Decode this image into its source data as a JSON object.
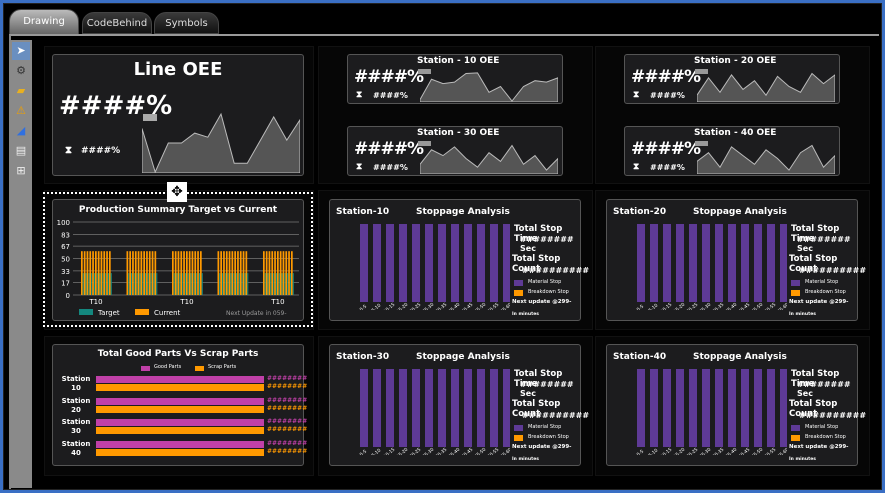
{
  "tabs": [
    "Drawing",
    "CodeBehind",
    "Symbols"
  ],
  "tools": [
    "pointer-icon",
    "connector-icon",
    "folder-icon",
    "warning-icon",
    "chart-icon",
    "table-icon",
    "grid-icon"
  ],
  "line_oee": {
    "title": "Line OEE",
    "value": "####%",
    "sub": "####%",
    "spark": [
      0.75,
      0.0,
      0.5,
      0.5,
      0.67,
      0.6,
      1.0,
      0.15,
      0.15,
      0.55,
      0.95,
      0.55,
      0.9
    ]
  },
  "stations_oee": [
    {
      "title": "Station - 10 OEE",
      "value": "####%",
      "sub": "####%",
      "spark": [
        0.05,
        0.75,
        0.6,
        0.65,
        0.95,
        0.97,
        0.3,
        0.5,
        0.0,
        0.5,
        0.7,
        0.65,
        0.8
      ]
    },
    {
      "title": "Station - 20 OEE",
      "value": "####%",
      "sub": "####%",
      "spark": [
        0.2,
        0.8,
        0.3,
        0.9,
        0.4,
        0.7,
        0.2,
        0.85,
        0.5,
        0.3,
        0.95,
        0.6,
        0.9
      ]
    },
    {
      "title": "Station - 30 OEE",
      "value": "####%",
      "sub": "####%",
      "spark": [
        0.3,
        0.8,
        0.6,
        0.9,
        0.5,
        0.2,
        0.7,
        0.4,
        0.95,
        0.3,
        0.6,
        0.1,
        0.5
      ]
    },
    {
      "title": "Station - 40 OEE",
      "value": "####%",
      "sub": "####%",
      "spark": [
        0.4,
        0.7,
        0.2,
        0.9,
        0.6,
        0.3,
        0.8,
        0.5,
        0.1,
        0.7,
        0.95,
        0.2,
        0.6
      ]
    }
  ],
  "production": {
    "title": "Production Summary Target vs Current",
    "yticks": [
      "100",
      "83",
      "67",
      "50",
      "33",
      "17",
      "0"
    ],
    "xlabels": [
      "T10",
      "T10",
      "T10"
    ],
    "legend": [
      "Target",
      "Current"
    ],
    "next_update": "Next Update in 059-",
    "target": 30,
    "current": 60,
    "colors": {
      "target": "#14877e",
      "current": "#ff9900"
    }
  },
  "stoppage": [
    {
      "station": "Station-10"
    },
    {
      "station": "Station-20"
    },
    {
      "station": "Station-30"
    },
    {
      "station": "Station-40"
    }
  ],
  "stoppage_common": {
    "title": "Stoppage Analysis",
    "stop_time_label": "Total Stop Time",
    "stop_time_value": "######## Sec",
    "stop_count_label": "Total Stop Count",
    "stop_count_value": "##########",
    "legend": [
      "Material Stop",
      "Breakdown Stop"
    ],
    "next_update": "Next update @299-",
    "in_minutes": "In minutes",
    "bins": [
      "0-5",
      "5-10",
      "10-15",
      "15-20",
      "20-25",
      "25-30",
      "30-35",
      "35-40",
      "40-45",
      "45-50",
      "50-55",
      "55-60"
    ],
    "color": "#5e3a96"
  },
  "good_scrap": {
    "title": "Total Good Parts Vs Scrap Parts",
    "legend": [
      "Good Parts",
      "Scrap Parts"
    ],
    "rows": [
      {
        "station": "Station",
        "num": "10",
        "good": "########",
        "scrap": "########"
      },
      {
        "station": "Station",
        "num": "20",
        "good": "########",
        "scrap": "########"
      },
      {
        "station": "Station",
        "num": "30",
        "good": "########",
        "scrap": "########"
      },
      {
        "station": "Station",
        "num": "40",
        "good": "########",
        "scrap": "########"
      }
    ],
    "colors": {
      "good": "#c040a8",
      "scrap": "#ff9900"
    }
  }
}
